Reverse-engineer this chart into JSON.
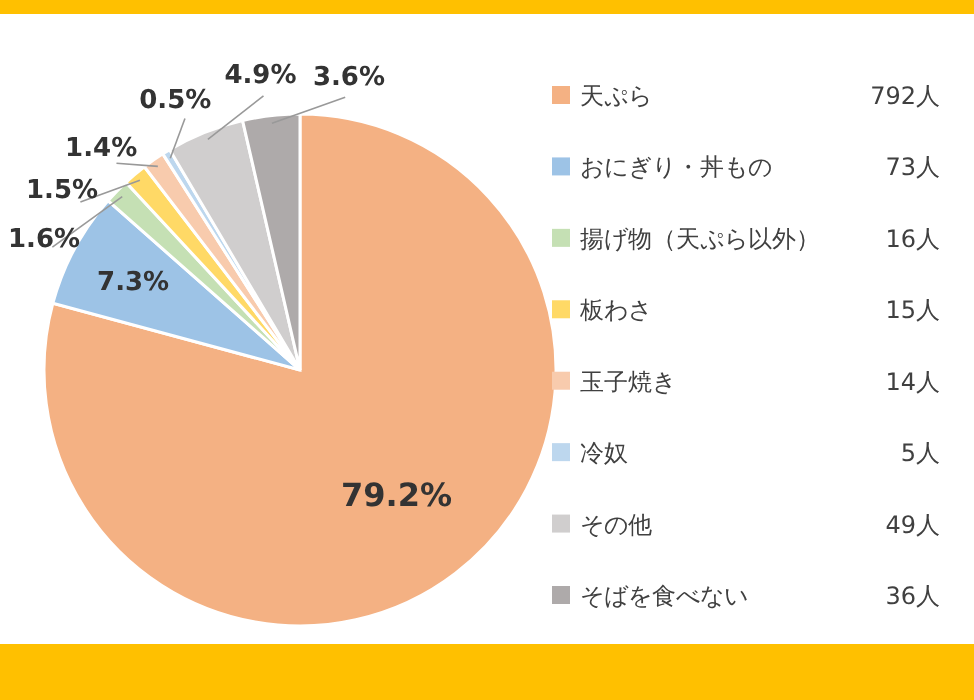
{
  "chart_data": {
    "type": "pie",
    "categories": [
      "天ぷら",
      "おにぎり・丼もの",
      "揚げ物（天ぷら以外）",
      "板わさ",
      "玉子焼き",
      "冷奴",
      "その他",
      "そばを食べない"
    ],
    "values": [
      79.2,
      7.3,
      1.6,
      1.5,
      1.4,
      0.5,
      4.9,
      3.6
    ],
    "value_labels": [
      "79.2%",
      "7.3%",
      "1.6%",
      "1.5%",
      "1.4%",
      "0.5%",
      "4.9%",
      "3.6%"
    ],
    "colors": [
      "#f4b183",
      "#9dc3e6",
      "#c5e0b4",
      "#ffd966",
      "#f8cbad",
      "#bdd7ee",
      "#d0cece",
      "#aeaaaa"
    ],
    "annotations": [
      "792人",
      "73人",
      "16人",
      "15人",
      "14人",
      "5人",
      "49人",
      "36人"
    ],
    "legend": "right"
  }
}
